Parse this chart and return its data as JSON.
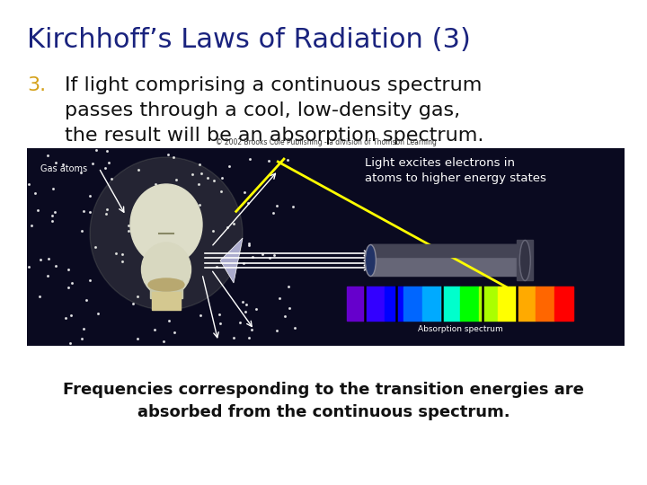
{
  "title": "Kirchhoff’s Laws of Radiation (3)",
  "title_color": "#1a237e",
  "title_fontsize": 22,
  "title_fontweight": "normal",
  "bg_color": "#ffffff",
  "number_label": "3.",
  "number_color": "#d4a017",
  "number_fontsize": 16,
  "body_text_line1": "If light comprising a continuous spectrum",
  "body_text_line2": "passes through a cool, low-density gas,",
  "body_text_line3": "the result will be an absorption spectrum.",
  "body_color": "#111111",
  "body_fontsize": 16,
  "annotation_line1": "Light excites electrons in",
  "annotation_line2": "atoms to higher energy states",
  "annotation_color": "#ffffff",
  "annotation_fontsize": 11,
  "footer_line1": "Frequencies corresponding to the transition energies are",
  "footer_line2": "absorbed from the continuous spectrum.",
  "footer_color": "#111111",
  "footer_fontsize": 13,
  "copyright": "© 2002 Brooks Cole Publishing - a division of Thomson Learning",
  "gas_atoms_label": "Gas atoms",
  "absorption_label": "Absorption spectrum",
  "image_bg": "#0a0a20",
  "star_color": "#ffffff",
  "bulb_color": "#e8e8d0",
  "bulb_base_color": "#c8b878",
  "telescope_body": "#555566",
  "telescope_dark": "#333344",
  "spectrum_colors": [
    "#6600cc",
    "#3300ff",
    "#0000ff",
    "#0066ff",
    "#00aaff",
    "#00ffcc",
    "#00ff00",
    "#aaff00",
    "#ffff00",
    "#ffaa00",
    "#ff6600",
    "#ff0000"
  ],
  "yellow_line_color": "#ffff00",
  "white_arrow_color": "#ffffff"
}
